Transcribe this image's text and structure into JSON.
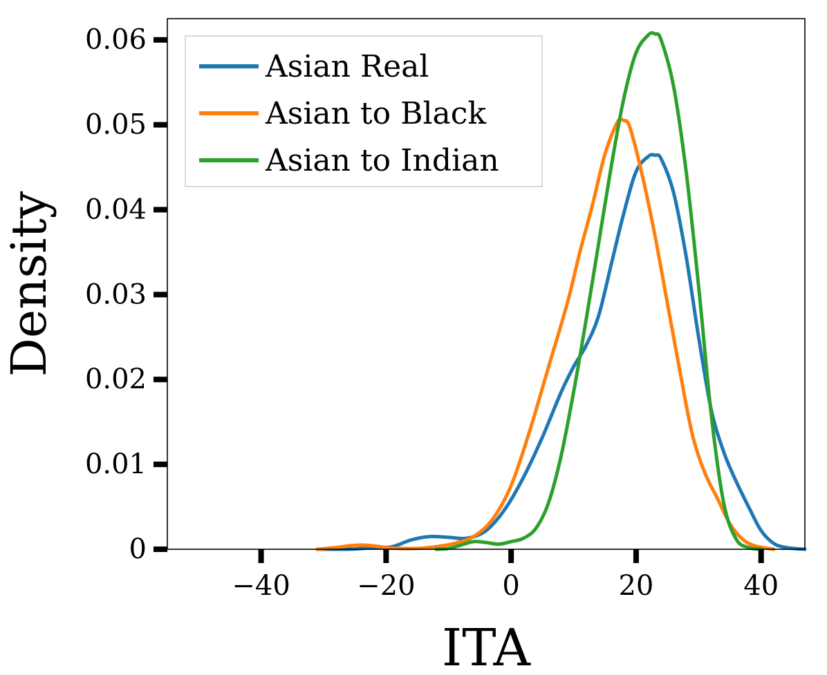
{
  "chart_data": {
    "type": "line",
    "title": "",
    "xlabel": "ITA",
    "ylabel": "Density",
    "xlim": [
      -55,
      47
    ],
    "ylim": [
      0,
      0.0625
    ],
    "xticks": [
      -40,
      -20,
      0,
      20,
      40
    ],
    "xtick_labels": [
      "−40",
      "−20",
      "0",
      "20",
      "40"
    ],
    "yticks": [
      0,
      0.01,
      0.02,
      0.03,
      0.04,
      0.05,
      0.06
    ],
    "ytick_labels": [
      "0",
      "0.01",
      "0.02",
      "0.03",
      "0.04",
      "0.05",
      "0.06"
    ],
    "grid": false,
    "legend_position": "top-left",
    "series": [
      {
        "name": "Asian Real",
        "color": "#1f77b4",
        "x": [
          -31,
          -26,
          -22,
          -19,
          -16,
          -13,
          -10,
          -7,
          -4,
          -1,
          2,
          5,
          8,
          10,
          12,
          14,
          16,
          18,
          20,
          22,
          23,
          24,
          26,
          28,
          30,
          32,
          34,
          36,
          38,
          40,
          42,
          44,
          47
        ],
        "y": [
          0,
          0,
          0.0002,
          0.0003,
          0.0011,
          0.0015,
          0.0014,
          0.0013,
          0.0022,
          0.0047,
          0.0085,
          0.0132,
          0.0185,
          0.0215,
          0.024,
          0.0275,
          0.0335,
          0.0395,
          0.0445,
          0.0463,
          0.0464,
          0.046,
          0.042,
          0.0345,
          0.025,
          0.0165,
          0.0115,
          0.008,
          0.005,
          0.0022,
          0.0007,
          0.0002,
          0
        ]
      },
      {
        "name": "Asian to Black",
        "color": "#ff7f0e",
        "x": [
          -31,
          -28,
          -26,
          -24,
          -22,
          -20,
          -18,
          -15,
          -12,
          -9,
          -6,
          -3,
          0,
          3,
          6,
          9,
          11,
          13,
          15,
          17,
          18,
          19,
          21,
          23,
          25,
          27,
          29,
          31,
          33,
          35,
          37,
          39,
          42
        ],
        "y": [
          0,
          0.0002,
          0.0004,
          0.0005,
          0.0004,
          0.0002,
          0.0001,
          0.0001,
          0.0003,
          0.0007,
          0.0015,
          0.0035,
          0.0075,
          0.014,
          0.0215,
          0.029,
          0.035,
          0.0405,
          0.0465,
          0.0503,
          0.0505,
          0.0497,
          0.044,
          0.037,
          0.029,
          0.021,
          0.0135,
          0.009,
          0.006,
          0.003,
          0.0012,
          0.0004,
          0
        ]
      },
      {
        "name": "Asian to Indian",
        "color": "#2ca02c",
        "x": [
          -12,
          -10,
          -8,
          -6,
          -4,
          -2,
          0,
          2,
          4,
          6,
          8,
          10,
          12,
          14,
          16,
          18,
          20,
          22,
          23,
          24,
          26,
          28,
          30,
          32,
          34,
          36,
          38,
          40
        ],
        "y": [
          0,
          0.0001,
          0.0005,
          0.0009,
          0.0008,
          0.0006,
          0.0009,
          0.0013,
          0.0025,
          0.0055,
          0.011,
          0.0185,
          0.027,
          0.036,
          0.045,
          0.053,
          0.0585,
          0.0606,
          0.0607,
          0.06,
          0.0545,
          0.0445,
          0.031,
          0.016,
          0.0055,
          0.0012,
          0.0002,
          0
        ]
      }
    ]
  }
}
